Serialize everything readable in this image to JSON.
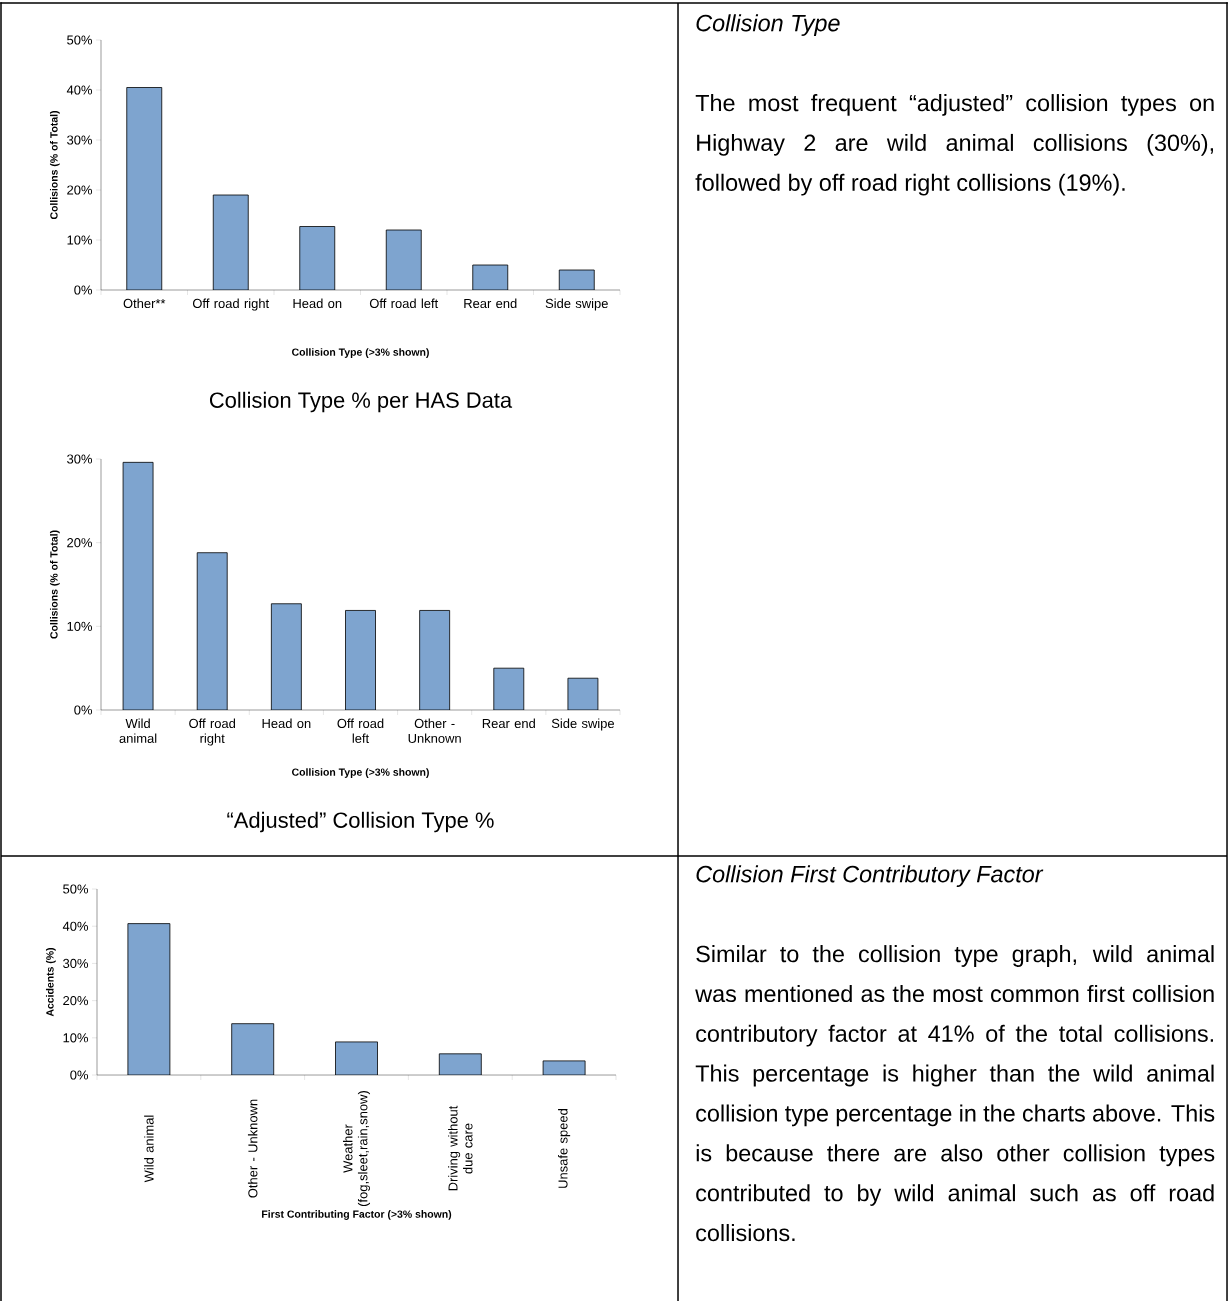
{
  "chart_data": [
    {
      "type": "bar",
      "title": "Collision Type % per HAS Data",
      "xlabel": "Collision Type (>3% shown)",
      "ylabel": "Collisions (% of Total)",
      "categories": [
        "Other**",
        "Off road right",
        "Head on",
        "Off road left",
        "Rear end",
        "Side swipe"
      ],
      "values": [
        40.5,
        19,
        12.7,
        12,
        5,
        4
      ],
      "color": "#7ea4cf",
      "ylim": [
        0,
        50
      ],
      "yticks": [
        {
          "value": 0,
          "label": "0%"
        },
        {
          "value": 10,
          "label": "10%"
        },
        {
          "value": 20,
          "label": "20%"
        },
        {
          "value": 30,
          "label": "30%"
        },
        {
          "value": 40,
          "label": "40%"
        },
        {
          "value": 50,
          "label": "50%"
        }
      ]
    },
    {
      "type": "bar",
      "title": "“Adjusted” Collision Type %",
      "xlabel": "Collision Type (>3% shown)",
      "ylabel": "Collisions (% of Total)",
      "categories": [
        "Wild animal",
        "Off road right",
        "Head on",
        "Off road left",
        "Other - Unknown",
        "Rear end",
        "Side swipe"
      ],
      "values": [
        29.6,
        18.8,
        12.7,
        11.9,
        11.9,
        5,
        3.8
      ],
      "color": "#7ea4cf",
      "ylim": [
        0,
        30
      ],
      "yticks": [
        {
          "value": 0,
          "label": "0%"
        },
        {
          "value": 10,
          "label": "10%"
        },
        {
          "value": 20,
          "label": "20%"
        },
        {
          "value": 30,
          "label": "30%"
        }
      ]
    },
    {
      "type": "other",
      "title": "Collision Type",
      "annotations": [
        "The most frequent “adjusted” collision types on Highway 2 are wild animal collisions (30%), followed by off road right collisions (19%)."
      ]
    },
    {
      "type": "bar",
      "xlabel": "First Contributing Factor (>3% shown)",
      "ylabel": "Accidents (%)",
      "categories": [
        "Wild animal",
        "Other - Unknown",
        "Weather (fog,sleet,rain,snow)",
        "Driving without due care",
        "Unsafe speed"
      ],
      "values": [
        40.7,
        13.8,
        8.9,
        5.7,
        3.8
      ],
      "color": "#7ea4cf",
      "ylim": [
        0,
        50
      ],
      "yticks": [
        {
          "value": 0,
          "label": "0%"
        },
        {
          "value": 10,
          "label": "10%"
        },
        {
          "value": 20,
          "label": "20%"
        },
        {
          "value": 30,
          "label": "30%"
        },
        {
          "value": 40,
          "label": "40%"
        },
        {
          "value": 50,
          "label": "50%"
        }
      ]
    },
    {
      "type": "other",
      "title": "Collision First Contributory Factor",
      "annotations": [
        "Similar to the collision type graph, wild animal was mentioned as the most common first collision contributory factor at 41% of the total collisions. This percentage is higher than the wild animal collision type percentage in the charts above. This is because there are also other collision types contributed to by wild animal such as off road collisions."
      ]
    }
  ]
}
